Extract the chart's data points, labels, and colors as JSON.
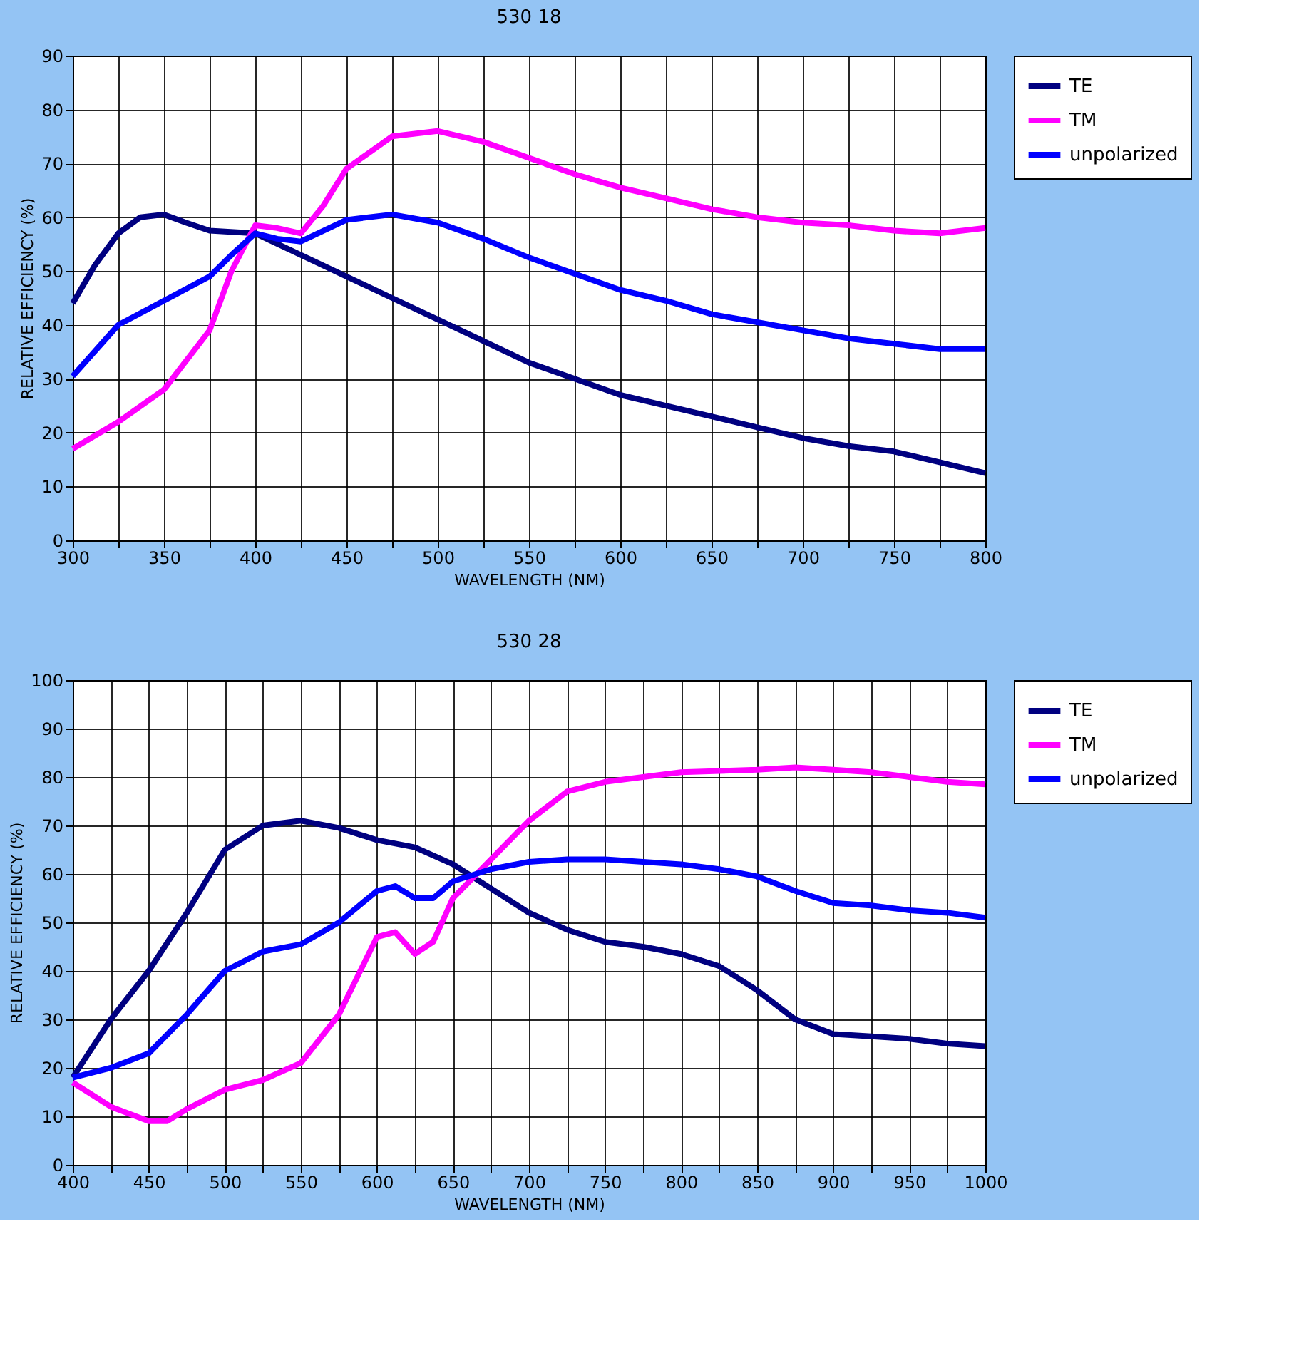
{
  "chart_data": [
    {
      "type": "line",
      "title": "530 18",
      "xlabel": "WAVELENGTH (NM)",
      "ylabel": "RELATIVE EFFICIENCY (%)",
      "xlim": [
        300,
        800
      ],
      "ylim": [
        0,
        90
      ],
      "xticks": [
        300,
        {
          "value": 325,
          "label": null
        },
        350,
        {
          "value": 375,
          "label": null
        },
        400,
        {
          "value": 425,
          "label": null
        },
        450,
        {
          "value": 475,
          "label": null
        },
        500,
        {
          "value": 525,
          "label": null
        },
        550,
        {
          "value": 575,
          "label": null
        },
        600,
        {
          "value": 625,
          "label": null
        },
        650,
        {
          "value": 675,
          "label": null
        },
        700,
        {
          "value": 725,
          "label": null
        },
        750,
        {
          "value": 775,
          "label": null
        },
        800
      ],
      "yticks": [
        0,
        10,
        20,
        30,
        40,
        50,
        60,
        70,
        80,
        90
      ],
      "grid": true,
      "legend": "right",
      "marker": "none",
      "line_style": "solid",
      "series": [
        {
          "name": "TE",
          "color": "#000080",
          "x": [
            300,
            312,
            325,
            337,
            350,
            362,
            375,
            400,
            425,
            450,
            475,
            500,
            525,
            550,
            575,
            600,
            625,
            650,
            675,
            700,
            725,
            750,
            775,
            800
          ],
          "values": [
            44,
            51,
            57,
            60,
            60.5,
            59,
            57.5,
            57,
            53,
            49,
            45,
            41,
            37,
            33,
            30,
            27,
            25,
            23,
            21,
            19,
            17.5,
            16.5,
            14.5,
            12.5
          ]
        },
        {
          "name": "TM",
          "color": "#ff00ff",
          "x": [
            300,
            325,
            350,
            375,
            387,
            400,
            412,
            425,
            437,
            450,
            475,
            500,
            525,
            550,
            575,
            600,
            625,
            650,
            675,
            700,
            725,
            750,
            775,
            800
          ],
          "values": [
            17,
            22,
            28,
            39,
            50,
            58.5,
            58,
            57,
            62,
            69,
            75,
            76,
            74,
            71,
            68,
            65.5,
            63.5,
            61.5,
            60,
            59,
            58.5,
            57.5,
            57,
            58
          ]
        },
        {
          "name": "unpolarized",
          "color": "#0000ff",
          "x": [
            300,
            325,
            350,
            375,
            387,
            400,
            412,
            425,
            450,
            475,
            500,
            525,
            550,
            575,
            600,
            625,
            650,
            675,
            700,
            725,
            750,
            775,
            800
          ],
          "values": [
            30.5,
            40,
            44.5,
            49,
            53,
            57,
            56,
            55.5,
            59.5,
            60.5,
            59,
            56,
            52.5,
            49.5,
            46.5,
            44.5,
            42,
            40.5,
            39,
            37.5,
            36.5,
            35.5,
            35.5
          ]
        }
      ]
    },
    {
      "type": "line",
      "title": "530 28",
      "xlabel": "WAVELENGTH (NM)",
      "ylabel": "RELATIVE EFFICIENCY (%)",
      "xlim": [
        400,
        1000
      ],
      "ylim": [
        0,
        100
      ],
      "xticks": [
        400,
        {
          "value": 425,
          "label": null
        },
        450,
        {
          "value": 475,
          "label": null
        },
        500,
        {
          "value": 525,
          "label": null
        },
        550,
        {
          "value": 575,
          "label": null
        },
        600,
        {
          "value": 625,
          "label": null
        },
        650,
        {
          "value": 675,
          "label": null
        },
        700,
        {
          "value": 725,
          "label": null
        },
        750,
        {
          "value": 775,
          "label": null
        },
        800,
        {
          "value": 825,
          "label": null
        },
        850,
        {
          "value": 875,
          "label": null
        },
        900,
        {
          "value": 925,
          "label": null
        },
        950,
        {
          "value": 975,
          "label": null
        },
        1000
      ],
      "yticks": [
        0,
        10,
        20,
        30,
        40,
        50,
        60,
        70,
        80,
        90,
        100
      ],
      "grid": true,
      "legend": "right",
      "marker": "none",
      "line_style": "solid",
      "series": [
        {
          "name": "TE",
          "color": "#000080",
          "x": [
            400,
            425,
            450,
            475,
            500,
            525,
            550,
            575,
            600,
            625,
            650,
            675,
            700,
            725,
            750,
            775,
            800,
            825,
            850,
            875,
            900,
            925,
            950,
            975,
            1000
          ],
          "values": [
            18,
            30,
            40,
            52,
            65,
            70,
            71,
            69.5,
            67,
            65.5,
            62,
            57,
            52,
            48.5,
            46,
            45,
            43.5,
            41,
            36,
            30,
            27,
            26.5,
            26,
            25,
            24.5
          ]
        },
        {
          "name": "TM",
          "color": "#ff00ff",
          "x": [
            400,
            425,
            450,
            462,
            475,
            500,
            525,
            550,
            575,
            600,
            612,
            625,
            637,
            650,
            675,
            700,
            725,
            750,
            775,
            800,
            850,
            875,
            900,
            925,
            950,
            975,
            1000
          ],
          "values": [
            17,
            12,
            9,
            9,
            11.5,
            15.5,
            17.5,
            21,
            31,
            47,
            48,
            43.5,
            46,
            55,
            63,
            71,
            77,
            79,
            80,
            81,
            81.5,
            82,
            81.5,
            81,
            80,
            79,
            78.5
          ]
        },
        {
          "name": "unpolarized",
          "color": "#0000ff",
          "x": [
            400,
            425,
            450,
            475,
            500,
            525,
            550,
            575,
            600,
            612,
            625,
            637,
            650,
            675,
            700,
            725,
            750,
            775,
            800,
            825,
            850,
            875,
            900,
            925,
            950,
            975,
            1000
          ],
          "values": [
            18,
            20,
            23,
            31,
            40,
            44,
            45.5,
            50,
            56.5,
            57.5,
            55,
            55,
            58.5,
            61,
            62.5,
            63,
            63,
            62.5,
            62,
            61,
            59.5,
            56.5,
            54,
            53.5,
            52.5,
            52,
            51
          ]
        }
      ]
    }
  ]
}
